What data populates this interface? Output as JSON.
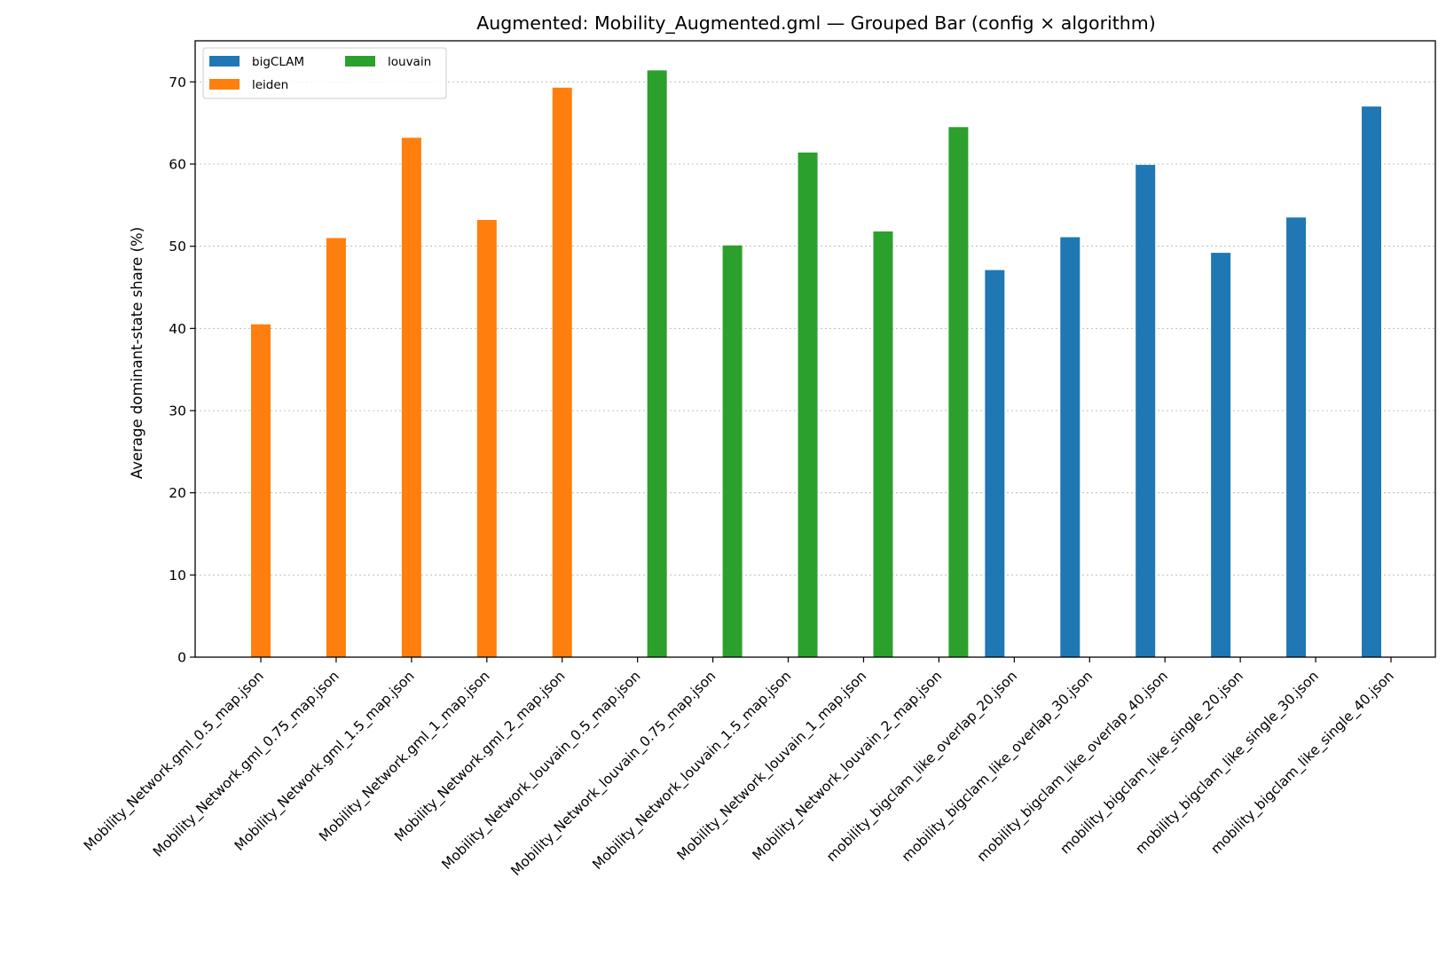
{
  "chart_data": {
    "type": "bar",
    "title": "Augmented: Mobility_Augmented.gml — Grouped Bar (config × algorithm)",
    "xlabel": "",
    "ylabel": "Average dominant-state share (%)",
    "ylim": [
      0,
      75
    ],
    "yticks": [
      0,
      10,
      20,
      30,
      40,
      50,
      60,
      70
    ],
    "grid": "y-dotted",
    "legend_placement": "top-left",
    "categories": [
      "Mobility_Network.gml_0.5_map.json",
      "Mobility_Network.gml_0.75_map.json",
      "Mobility_Network.gml_1.5_map.json",
      "Mobility_Network.gml_1_map.json",
      "Mobility_Network.gml_2_map.json",
      "Mobility_Network_louvain_0.5_map.json",
      "Mobility_Network_louvain_0.75_map.json",
      "Mobility_Network_louvain_1.5_map.json",
      "Mobility_Network_louvain_1_map.json",
      "Mobility_Network_louvain_2_map.json",
      "mobility_bigclam_like_overlap_20.json",
      "mobility_bigclam_like_overlap_30.json",
      "mobility_bigclam_like_overlap_40.json",
      "mobility_bigclam_like_single_20.json",
      "mobility_bigclam_like_single_30.json",
      "mobility_bigclam_like_single_40.json"
    ],
    "series": [
      {
        "name": "bigCLAM",
        "color": "#1f77b4",
        "values": [
          null,
          null,
          null,
          null,
          null,
          null,
          null,
          null,
          null,
          null,
          47.1,
          51.1,
          59.9,
          49.2,
          53.5,
          67.0
        ]
      },
      {
        "name": "leiden",
        "color": "#ff7f0e",
        "values": [
          40.5,
          51.0,
          63.2,
          53.2,
          69.3,
          null,
          null,
          null,
          null,
          null,
          null,
          null,
          null,
          null,
          null,
          null
        ]
      },
      {
        "name": "louvain",
        "color": "#2ca02c",
        "values": [
          null,
          null,
          null,
          null,
          null,
          71.4,
          50.1,
          61.4,
          51.8,
          64.5,
          null,
          null,
          null,
          null,
          null,
          null
        ]
      }
    ]
  }
}
